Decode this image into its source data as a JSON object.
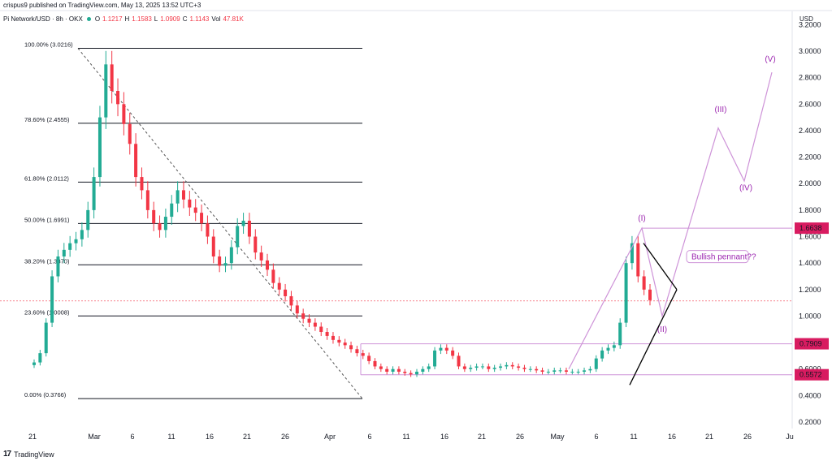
{
  "header": {
    "published": "crispus9 published on TradingView.com, May 13, 2025 13:52 UTC+3",
    "symbol": "Pi Network/USD · 8h · OKX",
    "o_label": "O",
    "o_val": "1.1217",
    "h_label": "H",
    "h_val": "1.1583",
    "l_label": "L",
    "l_val": "1.0909",
    "c_label": "C",
    "c_val": "1.1143",
    "vol_label": "Vol",
    "vol_val": "47.81K",
    "currency": "USD"
  },
  "footer": {
    "logo": "17",
    "brand": "TradingView"
  },
  "colors": {
    "up": "#22ab94",
    "down": "#f23645",
    "fib": "#131722",
    "wave": "#ce93d8",
    "price_box": "#d81b60",
    "wave_text": "#9c27b0"
  },
  "chart_data": {
    "type": "candlestick",
    "title": "Pi Network/USD · 8h · OKX",
    "ylim": [
      0.2,
      3.2
    ],
    "y_ticks": [
      "0.2000",
      "0.4000",
      "0.6000",
      "0.8000",
      "1.0000",
      "1.2000",
      "1.4000",
      "1.6000",
      "1.8000",
      "2.0000",
      "2.2000",
      "2.4000",
      "2.6000",
      "2.8000",
      "3.0000",
      "3.2000"
    ],
    "x_ticks": [
      "21",
      "Mar",
      "6",
      "11",
      "16",
      "21",
      "26",
      "Apr",
      "6",
      "11",
      "16",
      "21",
      "26",
      "May",
      "6",
      "11",
      "16",
      "21",
      "26",
      "Ju"
    ],
    "fib_levels": [
      {
        "label": "100.00% (3.0216)",
        "value": 3.0216
      },
      {
        "label": "78.60% (2.4555)",
        "value": 2.4555
      },
      {
        "label": "61.80% (2.0112)",
        "value": 2.0112
      },
      {
        "label": "50.00% (1.6991)",
        "value": 1.6991
      },
      {
        "label": "38.20% (1.3870)",
        "value": 1.387
      },
      {
        "label": "23.60% (1.0008)",
        "value": 1.0008
      },
      {
        "label": "0.00% (0.3766)",
        "value": 0.3766
      }
    ],
    "price_labels": [
      {
        "label": "1.6638",
        "value": 1.6638
      },
      {
        "label": "0.7909",
        "value": 0.7909
      },
      {
        "label": "0.5572",
        "value": 0.5572
      }
    ],
    "waves": [
      "(I)",
      "(II)",
      "(III)",
      "(IV)",
      "(V)"
    ],
    "annotation": "Bullish pennant??",
    "last_price": 1.1143,
    "closes": [
      0.65,
      0.72,
      0.95,
      1.3,
      1.45,
      1.5,
      1.55,
      1.58,
      1.65,
      1.8,
      2.05,
      2.5,
      2.9,
      2.7,
      2.6,
      2.45,
      2.3,
      2.05,
      1.95,
      1.8,
      1.7,
      1.65,
      1.75,
      1.85,
      1.95,
      1.88,
      1.82,
      1.78,
      1.7,
      1.6,
      1.45,
      1.38,
      1.4,
      1.52,
      1.68,
      1.72,
      1.6,
      1.48,
      1.42,
      1.35,
      1.25,
      1.2,
      1.15,
      1.08,
      1.02,
      0.98,
      0.95,
      0.92,
      0.88,
      0.85,
      0.82,
      0.8,
      0.78,
      0.75,
      0.72,
      0.7,
      0.66,
      0.62,
      0.6,
      0.58,
      0.6,
      0.58,
      0.57,
      0.56,
      0.58,
      0.6,
      0.62,
      0.74,
      0.76,
      0.74,
      0.7,
      0.62,
      0.6,
      0.61,
      0.62,
      0.62,
      0.6,
      0.61,
      0.62,
      0.63,
      0.62,
      0.61,
      0.6,
      0.6,
      0.59,
      0.58,
      0.58,
      0.59,
      0.59,
      0.58,
      0.58,
      0.58,
      0.59,
      0.6,
      0.68,
      0.74,
      0.76,
      0.78,
      0.95,
      1.4,
      1.55,
      1.3,
      1.2,
      1.12
    ]
  }
}
